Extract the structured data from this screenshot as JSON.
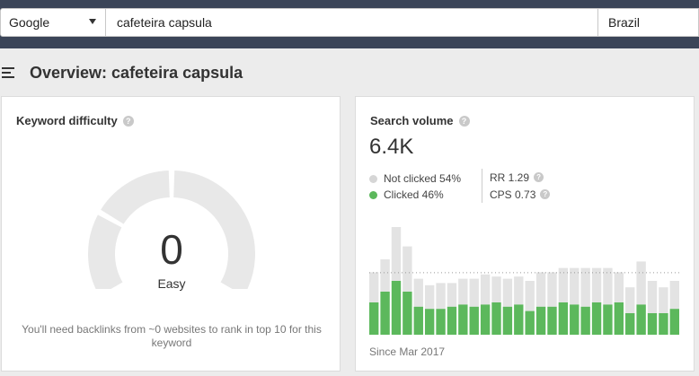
{
  "search": {
    "engine": "Google",
    "keyword": "cafeteira capsula",
    "country": "Brazil"
  },
  "page": {
    "title": "Overview: cafeteira capsula"
  },
  "keyword_difficulty": {
    "title": "Keyword difficulty",
    "score": "0",
    "label": "Easy",
    "note": "You'll need backlinks from ~0 websites to rank in top 10 for this keyword"
  },
  "search_volume": {
    "title": "Search volume",
    "value": "6.4K",
    "not_clicked": "Not clicked 54%",
    "clicked": "Clicked 46%",
    "rr": "RR 1.29",
    "cps": "CPS 0.73",
    "since": "Since Mar 2017"
  },
  "colors": {
    "topbar": "#3b4558",
    "clicked": "#5cb85c",
    "not_clicked": "#e3e3e3",
    "gauge_track": "#e8e8e8"
  },
  "chart_data": {
    "type": "bar",
    "series": [
      {
        "values": [
          15,
          20,
          25,
          20,
          13,
          12,
          12,
          13,
          14,
          13,
          14,
          15,
          13,
          14,
          11,
          13,
          13,
          15,
          14,
          13,
          15,
          14,
          15,
          10,
          14,
          10,
          10,
          12
        ]
      },
      {
        "values": [
          14,
          15,
          25,
          21,
          13,
          11,
          12,
          11,
          12,
          13,
          14,
          12,
          13,
          13,
          14,
          16,
          16,
          16,
          17,
          18,
          16,
          17,
          14,
          12,
          20,
          15,
          12,
          13
        ]
      }
    ]
  }
}
